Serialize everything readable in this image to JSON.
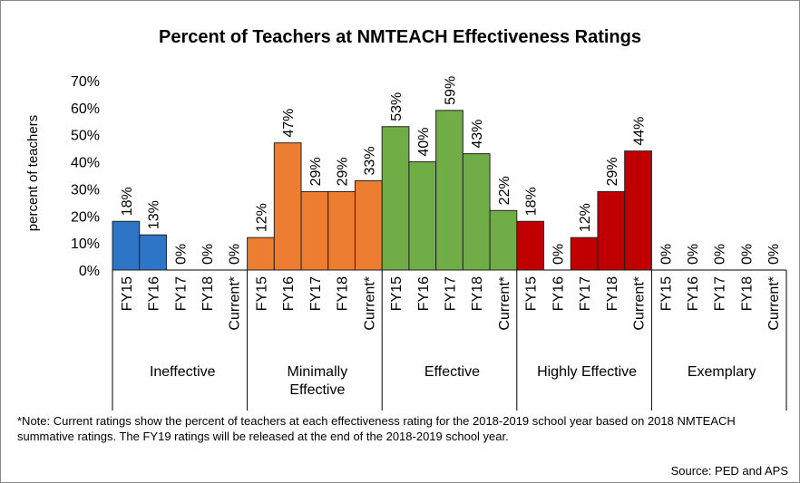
{
  "chart_data": {
    "type": "bar",
    "title": "Percent of Teachers at NMTEACH Effectiveness Ratings",
    "y_label": "percent of teachers",
    "ylim": [
      0,
      70
    ],
    "yticks": [
      {
        "value": 0,
        "label": "0%"
      },
      {
        "value": 10,
        "label": "10%"
      },
      {
        "value": 20,
        "label": "20%"
      },
      {
        "value": 30,
        "label": "30%"
      },
      {
        "value": 40,
        "label": "40%"
      },
      {
        "value": 50,
        "label": "50%"
      },
      {
        "value": 60,
        "label": "60%"
      },
      {
        "value": 70,
        "label": "70%"
      }
    ],
    "series": [
      {
        "name": "Ineffective",
        "color": "#2e75c6",
        "categories": [
          "FY15",
          "FY16",
          "FY17",
          "FY18",
          "Current*"
        ],
        "values": [
          18,
          13,
          0,
          0,
          0
        ],
        "value_labels": [
          "18%",
          "13%",
          "0%",
          "0%",
          "0%"
        ]
      },
      {
        "name": "Minimally Effective",
        "color": "#ed7d31",
        "categories": [
          "FY15",
          "FY16",
          "FY17",
          "FY18",
          "Current*"
        ],
        "values": [
          12,
          47,
          29,
          29,
          33
        ],
        "value_labels": [
          "12%",
          "47%",
          "29%",
          "29%",
          "33%"
        ]
      },
      {
        "name": "Effective",
        "color": "#70ad47",
        "categories": [
          "FY15",
          "FY16",
          "FY17",
          "FY18",
          "Current*"
        ],
        "values": [
          53,
          40,
          59,
          43,
          22
        ],
        "value_labels": [
          "53%",
          "40%",
          "59%",
          "43%",
          "22%"
        ]
      },
      {
        "name": "Highly Effective",
        "color": "#c00000",
        "categories": [
          "FY15",
          "FY16",
          "FY17",
          "FY18",
          "Current*"
        ],
        "values": [
          18,
          0,
          12,
          29,
          44
        ],
        "value_labels": [
          "18%",
          "0%",
          "12%",
          "29%",
          "44%"
        ]
      },
      {
        "name": "Exemplary",
        "categories": [
          "FY15",
          "FY16",
          "FY17",
          "FY18",
          "Current*"
        ],
        "values": [
          0,
          0,
          0,
          0,
          0
        ],
        "value_labels": [
          "0%",
          "0%",
          "0%",
          "0%",
          "0%"
        ]
      }
    ],
    "note": "*Note: Current ratings show the percent of teachers at each effectiveness rating for the 2018-2019  school year based on 2018 NMTEACH summative ratings. The FY19 ratings will be released at the end of the 2018-2019 school year.",
    "source": "Source: PED and APS"
  }
}
